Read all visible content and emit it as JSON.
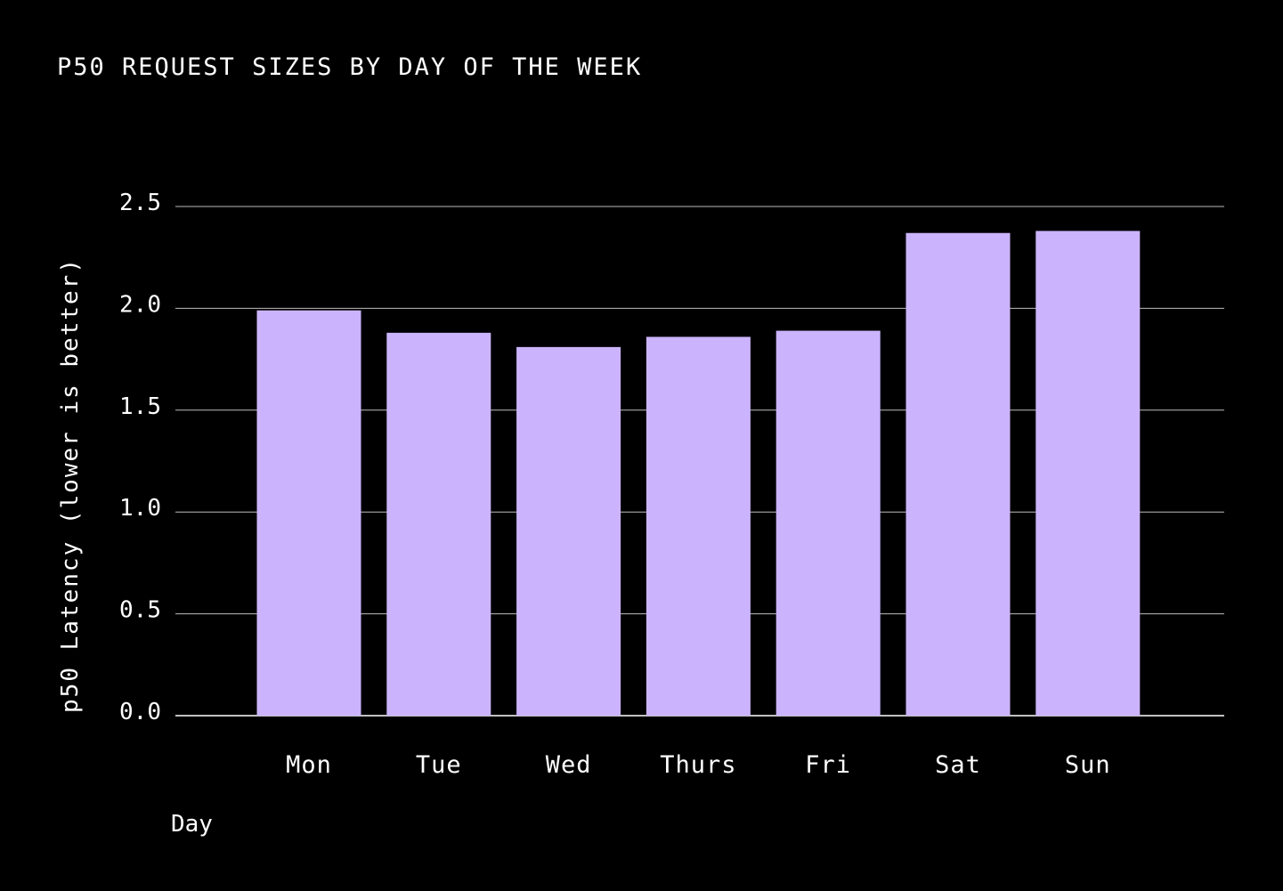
{
  "colors": {
    "background": "#000000",
    "bar": "#cbb4fd",
    "text": "#ffffff",
    "grid": "#bdbdbd"
  },
  "chart_data": {
    "type": "bar",
    "title": "P50 REQUEST SIZES BY DAY OF THE WEEK",
    "xlabel": "Day",
    "ylabel": "p50 Latency (lower is better)",
    "categories": [
      "Mon",
      "Tue",
      "Wed",
      "Thurs",
      "Fri",
      "Sat",
      "Sun"
    ],
    "values": [
      1.99,
      1.88,
      1.81,
      1.86,
      1.89,
      2.37,
      2.38
    ],
    "ylim": [
      0,
      2.5
    ],
    "yticks": [
      "0.0",
      "0.5",
      "1.0",
      "1.5",
      "2.0",
      "2.5"
    ],
    "grid": true,
    "legend": "none"
  }
}
